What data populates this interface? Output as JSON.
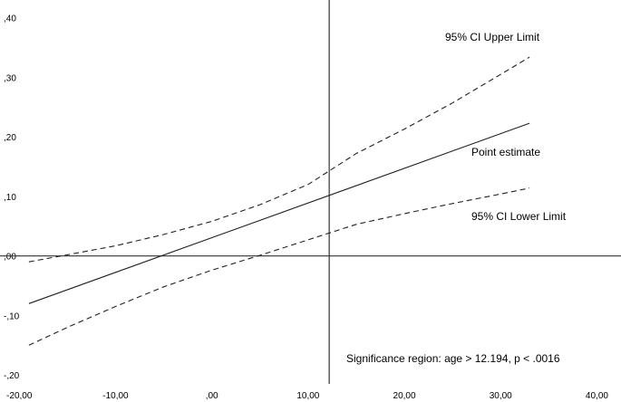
{
  "chart_data": {
    "type": "line",
    "x_ticks": [
      "-20,00",
      "-10,00",
      ",00",
      "10,00",
      "20,00",
      "30,00",
      "40,00"
    ],
    "y_ticks": [
      ",40",
      ",30",
      ",20",
      ",10",
      ",00",
      "-,10",
      "-,20"
    ],
    "xlim": [
      -22,
      42.5
    ],
    "ylim": [
      -0.215,
      0.43
    ],
    "reference_lines": {
      "x": 12.194,
      "y": 0
    },
    "series": [
      {
        "name": "Point estimate",
        "style": "solid",
        "x": [
          -19,
          33
        ],
        "y": [
          -0.08,
          0.223
        ]
      },
      {
        "name": "95% CI Upper Limit",
        "style": "dashed",
        "x": [
          -19,
          -15,
          -10,
          -5,
          0,
          5,
          10,
          15,
          20,
          25,
          30,
          33
        ],
        "y": [
          -0.01,
          0.002,
          0.017,
          0.036,
          0.058,
          0.086,
          0.12,
          0.172,
          0.213,
          0.257,
          0.305,
          0.334
        ]
      },
      {
        "name": "95% CI Lower Limit",
        "style": "dashed",
        "x": [
          -19,
          -15,
          -10,
          -5,
          0,
          5,
          10,
          15,
          20,
          25,
          30,
          33
        ],
        "y": [
          -0.15,
          -0.12,
          -0.085,
          -0.052,
          -0.024,
          0.001,
          0.027,
          0.053,
          0.071,
          0.088,
          0.104,
          0.114
        ]
      }
    ],
    "annotations": {
      "upper": "95% CI Upper Limit",
      "point": "Point estimate",
      "lower": "95% CI Lower Limit",
      "significance": "Significance region:  age > 12.194, p < .0016"
    }
  }
}
